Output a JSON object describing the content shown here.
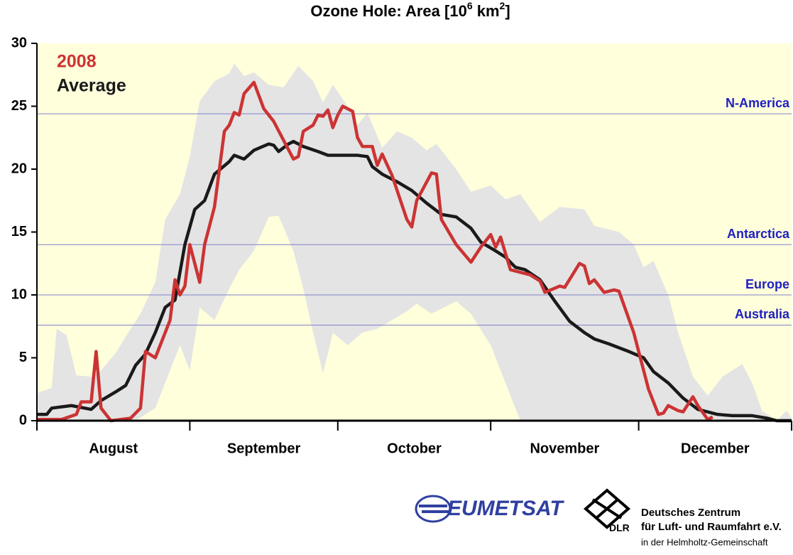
{
  "chart_data": {
    "type": "line",
    "title_parts": [
      "Ozone Hole: Area [10",
      "6",
      " km",
      "2",
      "]"
    ],
    "xlim": [
      0,
      153
    ],
    "xticks": [
      {
        "value": 0,
        "label": "August"
      },
      {
        "value": 31,
        "label": "September"
      },
      {
        "value": 61,
        "label": "October"
      },
      {
        "value": 92,
        "label": "November"
      },
      {
        "value": 122,
        "label": "December"
      }
    ],
    "ylim": [
      0,
      30
    ],
    "yticks": [
      0,
      5,
      10,
      15,
      20,
      25,
      30
    ],
    "background": "#ffffdc",
    "band": {
      "color": "#e4e4e4",
      "high": {
        "x": [
          0,
          3,
          4,
          6,
          8,
          11,
          13,
          16,
          19,
          21,
          24,
          25,
          26,
          29,
          31,
          33,
          36,
          39,
          40,
          42,
          44,
          47,
          50,
          53,
          56,
          58,
          60,
          63,
          65,
          67,
          70,
          73,
          76,
          79,
          81,
          85,
          88,
          92,
          95,
          98,
          102,
          106,
          111,
          113,
          118,
          121,
          123,
          125,
          128,
          130,
          133,
          136,
          139,
          143,
          145,
          147,
          150,
          152,
          153
        ],
        "values": [
          2.2,
          2.6,
          7.3,
          6.8,
          3.6,
          3.5,
          4,
          5.4,
          7.3,
          8.5,
          11,
          13.5,
          16,
          18,
          21,
          25.4,
          27,
          27.6,
          28.4,
          27.4,
          27.7,
          26.7,
          26.5,
          28.2,
          27,
          25.3,
          26.7,
          25,
          23.5,
          24.5,
          21.7,
          23,
          22.5,
          21.5,
          22,
          20,
          18.2,
          18.7,
          17.6,
          18,
          15.8,
          17,
          16.8,
          15.5,
          15,
          14,
          12.2,
          12.7,
          10,
          7,
          3.5,
          2,
          3.5,
          4.5,
          3,
          0.8,
          0,
          0.8,
          0.2
        ]
      },
      "low": {
        "x": [
          0,
          20,
          24,
          26,
          29,
          31,
          33,
          36,
          39,
          41,
          44,
          47,
          49,
          52,
          54,
          56,
          58,
          60,
          63,
          66,
          69,
          72,
          75,
          77,
          80,
          85,
          88,
          92,
          95,
          98,
          153
        ],
        "values": [
          0,
          0,
          1,
          3,
          6,
          4,
          9,
          8,
          10.5,
          12,
          13.5,
          16.2,
          16.3,
          13.5,
          10.5,
          7,
          3.8,
          7,
          6,
          7,
          7.3,
          8,
          8.7,
          9.3,
          8.5,
          9.5,
          8.5,
          6,
          3,
          0,
          0
        ]
      }
    },
    "series": [
      {
        "name": "2008",
        "color": "#cc3333",
        "x": [
          0,
          5,
          8,
          9,
          11,
          12,
          13,
          15,
          19,
          21,
          22,
          24,
          27,
          28,
          29,
          30,
          31,
          33,
          34,
          36,
          38,
          39,
          40,
          41,
          42,
          44,
          46,
          48,
          50,
          52,
          53,
          54,
          56,
          57,
          58,
          59,
          60,
          61,
          62,
          64,
          65,
          66,
          68,
          69,
          70,
          72,
          75,
          76,
          77,
          80,
          81,
          82,
          85,
          88,
          90,
          92,
          93,
          94,
          96,
          98,
          100,
          102,
          103,
          106,
          107,
          110,
          111,
          112,
          113,
          115,
          117,
          118,
          121,
          124,
          126,
          127,
          128,
          130,
          131,
          133,
          134,
          136,
          137
        ],
        "values": [
          0.1,
          0.1,
          0.5,
          1.5,
          1.5,
          5.5,
          1,
          0,
          0.2,
          1,
          5.5,
          5,
          8,
          11.2,
          10,
          10.7,
          14,
          11,
          14,
          17,
          23,
          23.5,
          24.5,
          24.3,
          26,
          26.9,
          24.8,
          23.8,
          22.3,
          20.8,
          21,
          23,
          23.5,
          24.3,
          24.2,
          24.7,
          23.3,
          24.3,
          25,
          24.6,
          22.5,
          21.8,
          21.8,
          20.3,
          21.2,
          19.5,
          16,
          15.4,
          17.5,
          19.7,
          19.6,
          16,
          14,
          12.6,
          13.8,
          14.8,
          13.8,
          14.6,
          12,
          11.8,
          11.6,
          11.1,
          10.2,
          10.7,
          10.6,
          12.5,
          12.3,
          10.9,
          11.2,
          10.2,
          10.4,
          10.3,
          7,
          2.5,
          0.5,
          0.6,
          1.2,
          0.8,
          0.7,
          1.9,
          1.2,
          0.1,
          0.3
        ]
      },
      {
        "name": "Average",
        "color": "#1a1a1a",
        "x": [
          0,
          2,
          3,
          7,
          11,
          13,
          16,
          18,
          20,
          22,
          24,
          26,
          28,
          30,
          32,
          34,
          36,
          39,
          40,
          42,
          44,
          47,
          48,
          49,
          51,
          52,
          54,
          57,
          59,
          65,
          67,
          68,
          70,
          73,
          76,
          79,
          82,
          85,
          88,
          90,
          93,
          95,
          97,
          99,
          102,
          105,
          108,
          111,
          113,
          116,
          120,
          123,
          125,
          128,
          131,
          134,
          138,
          141,
          145,
          148,
          150,
          153
        ],
        "values": [
          0.5,
          0.5,
          1,
          1.2,
          0.9,
          1.6,
          2.3,
          2.8,
          4.4,
          5.3,
          7,
          9,
          9.6,
          14,
          16.8,
          17.5,
          19.6,
          20.6,
          21.1,
          20.8,
          21.5,
          22,
          21.9,
          21.4,
          22,
          22.2,
          21.8,
          21.4,
          21.1,
          21.1,
          21,
          20.2,
          19.6,
          19,
          18.3,
          17.3,
          16.4,
          16.2,
          15.3,
          14.2,
          13.5,
          13,
          12.2,
          12,
          11.2,
          9.5,
          7.9,
          7,
          6.5,
          6.1,
          5.5,
          5,
          3.9,
          3,
          1.8,
          0.9,
          0.5,
          0.4,
          0.4,
          0.2,
          0,
          0
        ]
      }
    ],
    "reference_lines": {
      "color": "#8080cc",
      "label_color": "#2020c0",
      "items": [
        {
          "label": "N-America",
          "value": 24.4
        },
        {
          "label": "Antarctica",
          "value": 14
        },
        {
          "label": "Europe",
          "value": 10
        },
        {
          "label": "Australia",
          "value": 7.6
        }
      ]
    }
  },
  "logos": {
    "eumetsat": "EUMETSAT",
    "dlr": "DLR",
    "dlr_lines": [
      "Deutsches Zentrum",
      "für Luft- und Raumfahrt e.V.",
      "in der Helmholtz-Gemeinschaft"
    ]
  }
}
